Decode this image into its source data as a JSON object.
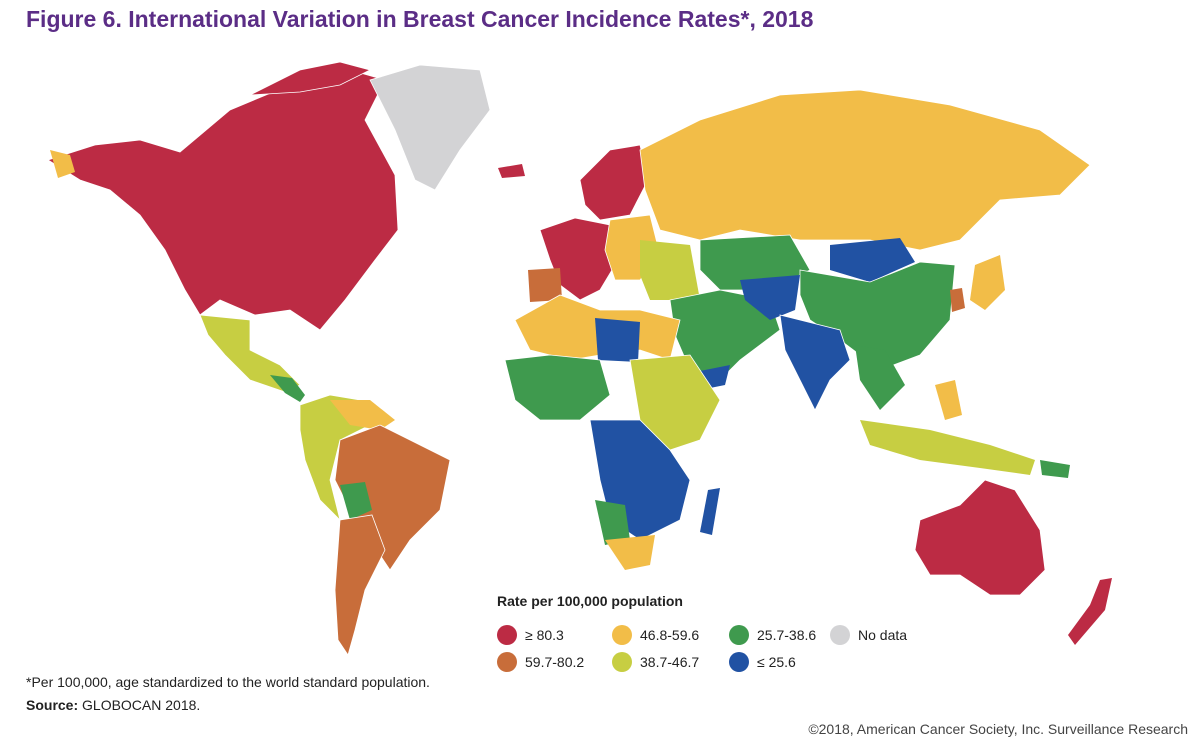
{
  "figure": {
    "title": "Figure 6. International Variation in Breast Cancer Incidence Rates*, 2018"
  },
  "legend": {
    "title": "Rate per 100,000 population",
    "items": [
      {
        "label": "≥ 80.3",
        "color": "#bc2b44"
      },
      {
        "label": "59.7-80.2",
        "color": "#c86d3a"
      },
      {
        "label": "46.8-59.6",
        "color": "#f2bd48"
      },
      {
        "label": "38.7-46.7",
        "color": "#c7ce42"
      },
      {
        "label": "25.7-38.6",
        "color": "#3f9a4e"
      },
      {
        "label": "≤ 25.6",
        "color": "#2152a3"
      },
      {
        "label": "No data",
        "color": "#d3d3d5"
      }
    ]
  },
  "footnote": "*Per 100,000, age standardized to the world standard population.",
  "source": {
    "label": "Source:",
    "text": "GLOBOCAN 2018."
  },
  "copyright": "©2018, American Cancer Society, Inc. Surveillance Research"
}
